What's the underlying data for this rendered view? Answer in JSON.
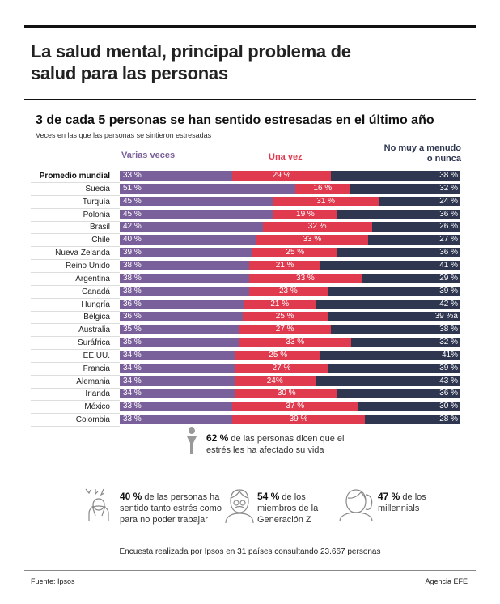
{
  "header": {
    "title_line1": "La salud mental, principal problema de",
    "title_line2": "salud para las personas"
  },
  "chart_data": {
    "type": "bar",
    "orientation": "horizontal",
    "stacked": true,
    "title": "3 de cada 5 personas se han sentido estresadas en el último año",
    "subtitle": "Veces en las que las personas se sintieron estresadas",
    "legend_position": "top",
    "series": [
      {
        "name": "Varias veces",
        "color": "#7a609a"
      },
      {
        "name": "Una vez",
        "color": "#e03a4f"
      },
      {
        "name_line1": "No muy a menudo",
        "name_line2": "o nunca",
        "color": "#2e3650"
      }
    ],
    "categories": [
      "Promedio mundial",
      "Suecia",
      "Turquía",
      "Polonia",
      "Brasil",
      "Chile",
      "Nueva Zelanda",
      "Reino Unido",
      "Argentina",
      "Canadá",
      "Hungría",
      "Bélgica",
      "Australia",
      "Suráfrica",
      "EE.UU.",
      "Francia",
      "Alemania",
      "Irlanda",
      "México",
      "Colombia"
    ],
    "values": [
      [
        33,
        29,
        38
      ],
      [
        51,
        16,
        32
      ],
      [
        45,
        31,
        24
      ],
      [
        45,
        19,
        36
      ],
      [
        42,
        32,
        26
      ],
      [
        40,
        33,
        27
      ],
      [
        39,
        25,
        36
      ],
      [
        38,
        21,
        41
      ],
      [
        38,
        33,
        29
      ],
      [
        38,
        23,
        39
      ],
      [
        36,
        21,
        42
      ],
      [
        36,
        25,
        39
      ],
      [
        35,
        27,
        38
      ],
      [
        35,
        33,
        32
      ],
      [
        34,
        25,
        41
      ],
      [
        34,
        27,
        39
      ],
      [
        34,
        24,
        43
      ],
      [
        34,
        30,
        36
      ],
      [
        33,
        37,
        30
      ],
      [
        33,
        39,
        28
      ]
    ],
    "labels": [
      [
        "33 %",
        "29 %",
        "38 %"
      ],
      [
        "51 %",
        "16 %",
        "32 %"
      ],
      [
        "45 %",
        "31 %",
        "24 %"
      ],
      [
        "45 %",
        "19 %",
        "36 %"
      ],
      [
        "42 %",
        "32 %",
        "26 %"
      ],
      [
        "40 %",
        "33 %",
        "27 %"
      ],
      [
        "39 %",
        "25 %",
        "36 %"
      ],
      [
        "38 %",
        "21 %",
        "41 %"
      ],
      [
        "38 %",
        "33 %",
        "29 %"
      ],
      [
        "38 %",
        "23 %",
        "39 %"
      ],
      [
        "36 %",
        "21 %",
        "42 %"
      ],
      [
        "36 %",
        "25 %",
        "39 %a"
      ],
      [
        "35 %",
        "27 %",
        "38 %"
      ],
      [
        "35 %",
        "33 %",
        "32 %"
      ],
      [
        "34 %",
        "25 %",
        "41%"
      ],
      [
        "34 %",
        "27 %",
        "39 %"
      ],
      [
        "34 %",
        "24%",
        "43 %"
      ],
      [
        "34 %",
        "30 %",
        "36 %"
      ],
      [
        "33 %",
        "37 %",
        "30 %"
      ],
      [
        "33 %",
        "39 %",
        "28 %"
      ]
    ]
  },
  "stats": {
    "main": {
      "value": "62 %",
      "text1": " de las personas dicen que el",
      "text2": "estrés les ha afectado su vida"
    },
    "work": {
      "value": "40 %",
      "text1": " de las personas ha",
      "text2": "sentido tanto estrés como",
      "text3": "para no poder trabajar"
    },
    "genz": {
      "value": "54 %",
      "text1": " de los",
      "text2": "miembros de la",
      "text3": "Generación Z"
    },
    "millennials": {
      "value": "47 %",
      "text1": " de los",
      "text2": "millennials"
    }
  },
  "survey": "Encuesta realizada por Ipsos en 31 países consultando 23.667 personas",
  "footer": {
    "source": "Fuente: Ipsos",
    "agency": "Agencia EFE"
  }
}
